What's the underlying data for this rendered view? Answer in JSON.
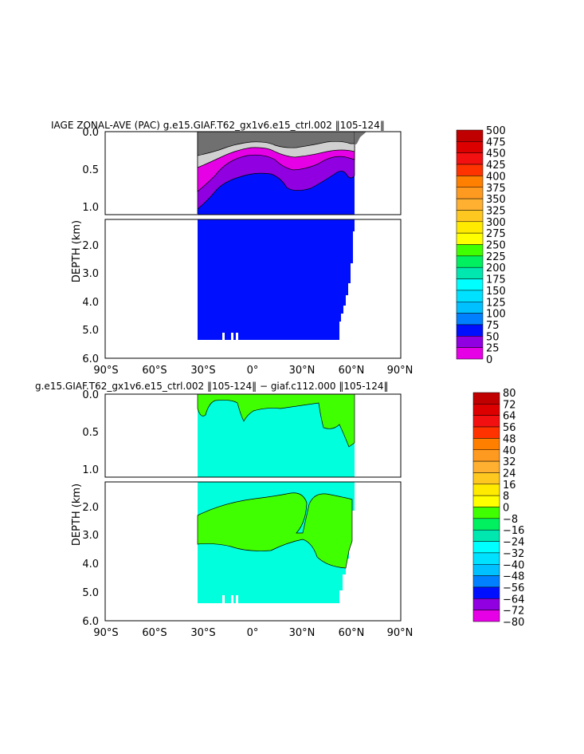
{
  "chart_data": [
    {
      "type": "heatmap",
      "title": "IAGE ZONAL-AVE (PAC) g.e15.GIAF.T62_gx1v6.e15_ctrl.002 ‖105-124‖",
      "ylabel": "DEPTH (km)",
      "xlabel": "",
      "x_ticks": [
        "90°S",
        "60°S",
        "30°S",
        "0°",
        "30°N",
        "60°N",
        "90°N"
      ],
      "y_ticks_upper": [
        "0.0",
        "0.5",
        "1.0"
      ],
      "y_ticks_lower": [
        "2.0",
        "3.0",
        "4.0",
        "5.0",
        "6.0"
      ],
      "xlim": [
        -90,
        90
      ],
      "ylim_km": [
        0,
        6
      ],
      "colorbar_levels": [
        "500",
        "475",
        "450",
        "425",
        "400",
        "375",
        "350",
        "325",
        "300",
        "275",
        "250",
        "225",
        "200",
        "175",
        "150",
        "125",
        "100",
        "75",
        "50",
        "25",
        "0"
      ],
      "colorbar_colors": [
        "#c00000",
        "#dd0000",
        "#f21010",
        "#ff3300",
        "#ff7f00",
        "#ff9a20",
        "#ffb030",
        "#ffc820",
        "#ffea00",
        "#ffff00",
        "#40ff00",
        "#00f060",
        "#00e8b0",
        "#00ffff",
        "#00e0ff",
        "#00c0ff",
        "#0080ff",
        "#0010ff",
        "#9000e0",
        "#e600e6",
        "#d0d0d0",
        "#707070"
      ],
      "fill_by_depth": [
        {
          "band": "0-25",
          "color": "#707070"
        },
        {
          "band": "25-50",
          "color": "#d0d0d0"
        },
        {
          "band": "50-75",
          "color": "#e600e6"
        },
        {
          "band": "75-100",
          "color": "#9000e0"
        },
        {
          "band": "100-125",
          "color": "#0010ff"
        }
      ],
      "data_extent_lat": [
        -35,
        65
      ]
    },
    {
      "type": "heatmap",
      "title": "g.e15.GIAF.T62_gx1v6.e15_ctrl.002 ‖105-124‖ − giaf.c112.000 ‖105-124‖",
      "ylabel": "DEPTH (km)",
      "xlabel": "",
      "x_ticks": [
        "90°S",
        "60°S",
        "30°S",
        "0°",
        "30°N",
        "60°N",
        "90°N"
      ],
      "y_ticks_upper": [
        "0.0",
        "0.5",
        "1.0"
      ],
      "y_ticks_lower": [
        "2.0",
        "3.0",
        "4.0",
        "5.0",
        "6.0"
      ],
      "xlim": [
        -90,
        90
      ],
      "ylim_km": [
        0,
        6
      ],
      "colorbar_levels": [
        "80",
        "72",
        "64",
        "56",
        "48",
        "40",
        "32",
        "24",
        "16",
        "8",
        "0",
        "−8",
        "−16",
        "−24",
        "−32",
        "−40",
        "−48",
        "−56",
        "−64",
        "−72",
        "−80"
      ],
      "colorbar_colors": [
        "#c00000",
        "#dd0000",
        "#f21010",
        "#ff3300",
        "#ff7f00",
        "#ff9a20",
        "#ffb030",
        "#ffc820",
        "#ffea00",
        "#ffff00",
        "#40ff00",
        "#00f060",
        "#00e8b0",
        "#00ffff",
        "#00e0ff",
        "#00c0ff",
        "#0080ff",
        "#0010ff",
        "#9000e0",
        "#e600e6",
        "#d0d0d0",
        "#707070"
      ],
      "fill_by_value": [
        {
          "band": "0-8",
          "color": "#40ff00"
        },
        {
          "band": "-8-0",
          "color": "#00ffdd"
        }
      ],
      "data_extent_lat": [
        -35,
        65
      ]
    }
  ]
}
